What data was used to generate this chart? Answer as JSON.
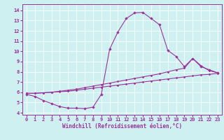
{
  "xlabel": "Windchill (Refroidissement éolien,°C)",
  "bg_color": "#cff0f0",
  "line_color": "#993399",
  "grid_color": "#ffffff",
  "xlim": [
    -0.5,
    23.5
  ],
  "ylim": [
    3.8,
    14.6
  ],
  "yticks": [
    4,
    5,
    6,
    7,
    8,
    9,
    10,
    11,
    12,
    13,
    14
  ],
  "xticks": [
    0,
    1,
    2,
    3,
    4,
    5,
    6,
    7,
    8,
    9,
    10,
    11,
    12,
    13,
    14,
    15,
    16,
    17,
    18,
    19,
    20,
    21,
    22,
    23
  ],
  "line1_x": [
    0,
    1,
    2,
    3,
    4,
    5,
    6,
    7,
    8,
    9,
    10,
    11,
    12,
    13,
    14,
    15,
    16,
    17,
    18,
    19,
    20,
    21,
    22,
    23
  ],
  "line1_y": [
    5.8,
    5.6,
    5.2,
    4.9,
    4.6,
    4.45,
    4.45,
    4.4,
    4.55,
    5.8,
    10.2,
    11.9,
    13.2,
    13.75,
    13.8,
    13.2,
    12.6,
    10.1,
    9.5,
    8.5,
    9.3,
    8.5,
    8.2,
    7.9
  ],
  "line2_x": [
    0,
    1,
    2,
    3,
    4,
    5,
    6,
    7,
    8,
    9,
    10,
    11,
    12,
    13,
    14,
    15,
    16,
    17,
    18,
    19,
    20,
    21,
    22,
    23
  ],
  "line2_y": [
    5.9,
    5.9,
    5.95,
    6.0,
    6.1,
    6.2,
    6.3,
    6.45,
    6.6,
    6.75,
    6.9,
    7.05,
    7.2,
    7.35,
    7.5,
    7.65,
    7.8,
    8.0,
    8.2,
    8.35,
    9.3,
    8.6,
    8.1,
    7.9
  ],
  "line3_x": [
    0,
    1,
    2,
    3,
    4,
    5,
    6,
    7,
    8,
    9,
    10,
    11,
    12,
    13,
    14,
    15,
    16,
    17,
    18,
    19,
    20,
    21,
    22,
    23
  ],
  "line3_y": [
    5.9,
    5.9,
    5.95,
    6.0,
    6.05,
    6.1,
    6.2,
    6.3,
    6.4,
    6.5,
    6.6,
    6.7,
    6.8,
    6.9,
    7.0,
    7.1,
    7.2,
    7.3,
    7.4,
    7.5,
    7.6,
    7.7,
    7.75,
    7.85
  ]
}
